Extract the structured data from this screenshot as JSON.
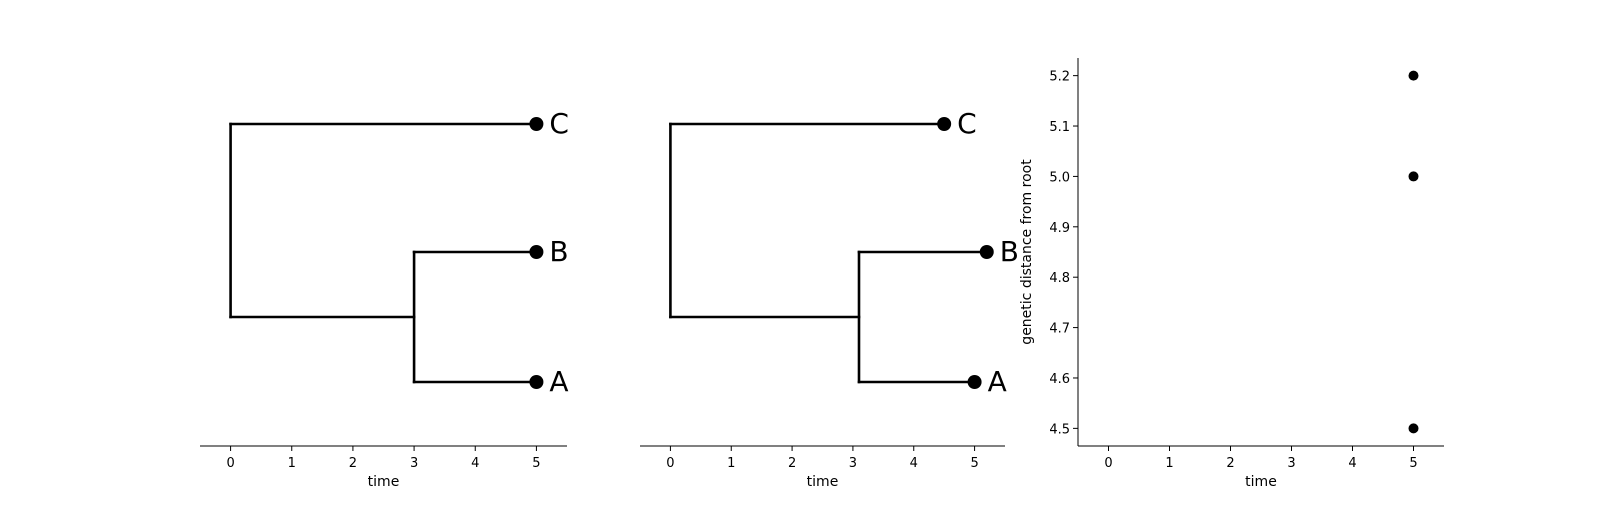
{
  "chart_data": [
    {
      "type": "tree",
      "xlabel": "time",
      "xticks": [
        0,
        1,
        2,
        3,
        4,
        5
      ],
      "xlim": [
        -0.5,
        5.5
      ],
      "nodes": [
        {
          "id": "root",
          "x": 0
        },
        {
          "id": "AB",
          "parent": "root",
          "x": 3
        },
        {
          "id": "C",
          "parent": "root",
          "x": 5,
          "label": "C"
        },
        {
          "id": "B",
          "parent": "AB",
          "x": 5,
          "label": "B"
        },
        {
          "id": "A",
          "parent": "AB",
          "x": 5,
          "label": "A"
        }
      ],
      "tip_order": [
        "C",
        "B",
        "A"
      ],
      "marker_color": "#000000"
    },
    {
      "type": "tree",
      "xlabel": "time",
      "xticks": [
        0,
        1,
        2,
        3,
        4,
        5
      ],
      "xlim": [
        -0.5,
        5.5
      ],
      "nodes": [
        {
          "id": "root",
          "x": 0
        },
        {
          "id": "AB",
          "parent": "root",
          "x": 3.1
        },
        {
          "id": "C",
          "parent": "root",
          "x": 4.5,
          "label": "C"
        },
        {
          "id": "B",
          "parent": "AB",
          "x": 5.2,
          "label": "B"
        },
        {
          "id": "A",
          "parent": "AB",
          "x": 5.0,
          "label": "A"
        }
      ],
      "tip_order": [
        "C",
        "B",
        "A"
      ],
      "marker_color": "#000000"
    },
    {
      "type": "scatter",
      "xlabel": "time",
      "ylabel": "genetic distance from root",
      "xticks": [
        0,
        1,
        2,
        3,
        4,
        5
      ],
      "yticks": [
        4.5,
        4.6,
        4.7,
        4.8,
        4.9,
        5.0,
        5.1,
        5.2
      ],
      "ytick_labels": [
        "4.5",
        "4.6",
        "4.7",
        "4.8",
        "4.9",
        "5.0",
        "5.1",
        "5.2"
      ],
      "xlim": [
        -0.5,
        5.5
      ],
      "ylim": [
        4.465,
        5.235
      ],
      "points": [
        {
          "x": 5,
          "y": 5.2
        },
        {
          "x": 5,
          "y": 5.0
        },
        {
          "x": 5,
          "y": 4.5
        }
      ],
      "marker_color": "#000000"
    }
  ]
}
